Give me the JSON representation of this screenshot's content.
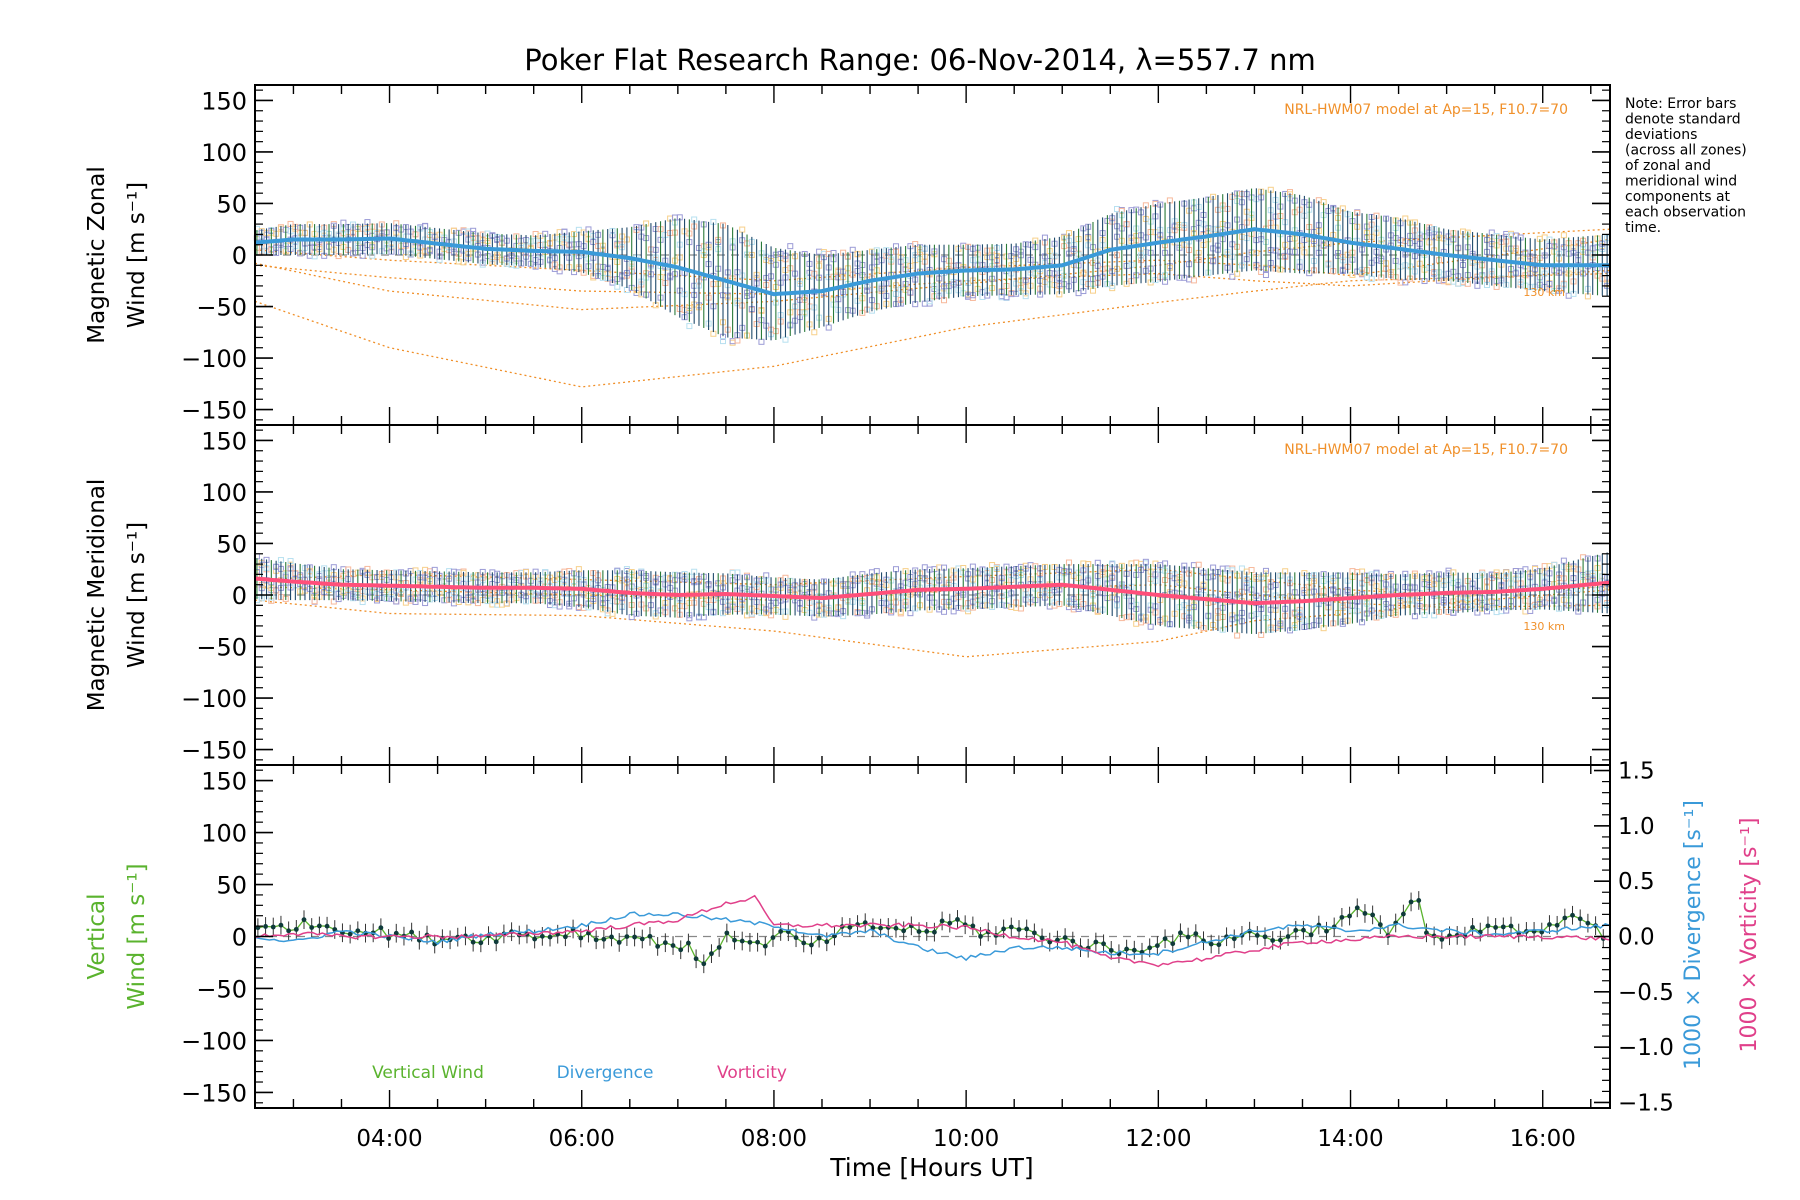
{
  "title": "Poker Flat Research Range: 06-Nov-2014, λ=557.7 nm",
  "note": [
    "Note: Error bars",
    "denote standard",
    "deviations",
    "(across all zones)",
    "of zonal and",
    "meridional wind",
    "components at",
    "each observation",
    "time."
  ],
  "colors": {
    "zonal_mean": "#3a9ad9",
    "meridional_mean": "#ff4f7a",
    "vertical": "#5ab32e",
    "divergence": "#3a9ad9",
    "vorticity": "#e0408a",
    "model": "#f0902a",
    "scatter": "#9b9bd6",
    "errorbar": "#1f4a6b"
  },
  "chart_data": [
    {
      "type": "line",
      "panel": "zonal",
      "ylabel_lines": [
        "Magnetic Zonal",
        "Wind [m s⁻¹]"
      ],
      "ylim": [
        -165,
        165
      ],
      "yticks": [
        150,
        100,
        50,
        0,
        -50,
        -100,
        -150
      ],
      "xlim": [
        2.6,
        16.7
      ],
      "model_label": "NRL-HWM07 model at Ap=15, F10.7=70",
      "model_alt_label": "130 km",
      "series": [
        {
          "role": "mean",
          "x": [
            2.6,
            3.0,
            3.5,
            4.0,
            4.5,
            5.0,
            5.5,
            6.0,
            6.5,
            7.0,
            7.5,
            8.0,
            8.5,
            9.0,
            9.5,
            10.0,
            10.5,
            11.0,
            11.5,
            12.0,
            12.5,
            13.0,
            13.5,
            14.0,
            14.5,
            15.0,
            15.5,
            16.0,
            16.7
          ],
          "y": [
            12,
            15,
            15,
            16,
            11,
            6,
            4,
            3,
            -3,
            -12,
            -25,
            -38,
            -35,
            -25,
            -18,
            -15,
            -14,
            -10,
            5,
            12,
            18,
            25,
            20,
            12,
            6,
            0,
            -5,
            -10,
            -10
          ],
          "error": [
            12,
            15,
            15,
            15,
            15,
            15,
            15,
            20,
            30,
            48,
            55,
            45,
            35,
            30,
            28,
            25,
            25,
            28,
            35,
            38,
            38,
            40,
            38,
            30,
            30,
            25,
            25,
            25,
            30
          ]
        }
      ],
      "models": [
        {
          "x": [
            2.6,
            4.0,
            6.0,
            8.0,
            10.0,
            12.0,
            13.0,
            14.0,
            16.7
          ],
          "y": [
            -45,
            -90,
            -128,
            -108,
            -70,
            -46,
            -35,
            -25,
            -18
          ]
        },
        {
          "x": [
            2.6,
            4.0,
            6.0,
            8.0,
            10.0,
            12.0,
            13.0,
            14.0,
            16.7
          ],
          "y": [
            -8,
            -35,
            -53,
            -45,
            -28,
            -10,
            3,
            12,
            25
          ]
        },
        {
          "x": [
            2.6,
            4.0,
            6.0,
            8.0,
            10.0,
            12.0,
            13.0,
            14.0,
            16.7
          ],
          "y": [
            5,
            -5,
            -15,
            -25,
            -12,
            -5,
            -10,
            -20,
            15
          ]
        },
        {
          "x": [
            2.6,
            4.0,
            6.0,
            8.0,
            10.0,
            12.0,
            13.0,
            14.0,
            16.7
          ],
          "y": [
            -10,
            -22,
            -35,
            -38,
            -25,
            -18,
            -25,
            -30,
            -15
          ]
        }
      ]
    },
    {
      "type": "line",
      "panel": "meridional",
      "ylabel_lines": [
        "Magnetic Meridional",
        "Wind [m s⁻¹]"
      ],
      "ylim": [
        -165,
        165
      ],
      "yticks": [
        150,
        100,
        50,
        0,
        -50,
        -100,
        -150
      ],
      "xlim": [
        2.6,
        16.7
      ],
      "model_label": "NRL-HWM07 model at Ap=15, F10.7=70",
      "model_alt_label": "130 km",
      "series": [
        {
          "role": "mean",
          "x": [
            2.6,
            3.0,
            3.5,
            4.0,
            4.5,
            5.0,
            5.5,
            6.0,
            6.5,
            7.0,
            7.5,
            8.0,
            8.5,
            9.0,
            9.5,
            10.0,
            10.5,
            11.0,
            11.5,
            12.0,
            12.5,
            13.0,
            13.5,
            14.0,
            14.5,
            15.0,
            15.5,
            16.0,
            16.7
          ],
          "y": [
            16,
            13,
            10,
            9,
            8,
            7,
            7,
            6,
            2,
            0,
            1,
            -1,
            -3,
            1,
            5,
            6,
            8,
            10,
            5,
            0,
            -4,
            -8,
            -6,
            -3,
            0,
            2,
            3,
            6,
            12
          ],
          "error": [
            20,
            18,
            15,
            15,
            15,
            15,
            15,
            18,
            22,
            22,
            20,
            18,
            18,
            20,
            20,
            20,
            20,
            20,
            25,
            30,
            30,
            30,
            28,
            25,
            20,
            20,
            18,
            20,
            30
          ]
        }
      ],
      "models": [
        {
          "x": [
            2.6,
            4.0,
            6.0,
            8.0,
            10.0,
            12.0,
            13.0,
            14.0,
            15.0,
            16.7
          ],
          "y": [
            -5,
            -18,
            -20,
            -35,
            -60,
            -45,
            -25,
            -18,
            -8,
            5
          ]
        },
        {
          "x": [
            2.6,
            4.0,
            6.0,
            8.0,
            10.0,
            12.0,
            13.0,
            14.0,
            15.0,
            16.7
          ],
          "y": [
            15,
            20,
            15,
            10,
            18,
            25,
            15,
            5,
            0,
            8
          ]
        },
        {
          "x": [
            2.6,
            4.0,
            6.0,
            8.0,
            10.0,
            12.0,
            13.0,
            14.0,
            15.0,
            16.7
          ],
          "y": [
            8,
            5,
            0,
            -5,
            5,
            10,
            0,
            -8,
            -12,
            -10
          ]
        }
      ]
    },
    {
      "type": "line",
      "panel": "vertical",
      "ylabel_lines": [
        "Vertical",
        "Wind [m s⁻¹]"
      ],
      "ylim": [
        -165,
        165
      ],
      "yticks": [
        150,
        100,
        50,
        0,
        -50,
        -100,
        -150
      ],
      "y2label_divergence": "1000 × Divergence [s⁻¹]",
      "y2label_vorticity": "1000 × Vorticity [s⁻¹]",
      "y2lim": [
        -1.55,
        1.55
      ],
      "y2ticks": [
        1.5,
        1.0,
        0.5,
        0.0,
        -0.5,
        -1.0,
        -1.5
      ],
      "y2ticklabels": [
        "1.5",
        "1.0",
        "0.5",
        "0.0",
        "−0.5",
        "−1.0",
        "−1.5"
      ],
      "xlim": [
        2.6,
        16.7
      ],
      "xticks": [
        4,
        6,
        8,
        10,
        12,
        14,
        16
      ],
      "xticklabels": [
        "04:00",
        "06:00",
        "08:00",
        "10:00",
        "12:00",
        "14:00",
        "16:00"
      ],
      "xlabel": "Time [Hours UT]",
      "legend": [
        "Vertical Wind",
        "Divergence",
        "Vorticity"
      ],
      "series": [
        {
          "name": "Vertical Wind",
          "x": [
            2.6,
            2.9,
            3.2,
            3.5,
            3.8,
            4.1,
            4.4,
            4.7,
            5.0,
            5.3,
            5.6,
            5.9,
            6.2,
            6.5,
            6.8,
            7.1,
            7.3,
            7.5,
            7.8,
            8.1,
            8.4,
            8.7,
            9.0,
            9.3,
            9.6,
            9.9,
            10.2,
            10.5,
            10.8,
            11.1,
            11.4,
            11.7,
            12.0,
            12.3,
            12.6,
            12.9,
            13.2,
            13.5,
            13.8,
            14.1,
            14.4,
            14.7,
            14.8,
            15.0,
            15.3,
            15.6,
            15.9,
            16.2,
            16.5,
            16.7
          ],
          "y": [
            5,
            10,
            12,
            8,
            5,
            2,
            -3,
            0,
            -2,
            3,
            0,
            5,
            -2,
            0,
            -5,
            -10,
            -30,
            5,
            -10,
            3,
            -10,
            5,
            10,
            8,
            5,
            15,
            2,
            8,
            0,
            -5,
            -10,
            -15,
            -5,
            0,
            -5,
            3,
            -2,
            5,
            10,
            25,
            5,
            40,
            0,
            -5,
            5,
            10,
            0,
            15,
            18,
            -10
          ]
        },
        {
          "name": "Divergence",
          "axis": "y2",
          "x": [
            2.6,
            3.0,
            3.5,
            4.0,
            4.5,
            5.0,
            5.5,
            6.0,
            6.5,
            7.0,
            7.5,
            8.0,
            8.5,
            9.0,
            9.5,
            10.0,
            10.5,
            11.0,
            11.5,
            12.0,
            12.5,
            13.0,
            13.5,
            14.0,
            14.5,
            15.0,
            15.5,
            16.0,
            16.7
          ],
          "y": [
            0.0,
            -0.05,
            0.05,
            0.0,
            -0.05,
            0.02,
            0.05,
            0.1,
            0.2,
            0.2,
            0.15,
            0.1,
            0.0,
            0.05,
            -0.1,
            -0.2,
            -0.1,
            -0.1,
            -0.15,
            -0.15,
            -0.05,
            0.05,
            0.1,
            0.05,
            0.1,
            0.05,
            0.02,
            0.05,
            0.1
          ]
        },
        {
          "name": "Vorticity",
          "axis": "y2",
          "x": [
            2.6,
            3.0,
            3.5,
            4.0,
            4.5,
            5.0,
            5.5,
            6.0,
            6.5,
            7.0,
            7.5,
            7.8,
            8.0,
            8.5,
            9.0,
            9.5,
            10.0,
            10.5,
            11.0,
            11.5,
            12.0,
            12.5,
            13.0,
            13.5,
            14.0,
            14.5,
            15.0,
            15.5,
            16.0,
            16.7
          ],
          "y": [
            0.0,
            0.03,
            0.0,
            0.0,
            0.0,
            0.0,
            0.03,
            0.05,
            0.1,
            0.15,
            0.3,
            0.35,
            0.1,
            0.1,
            0.1,
            0.1,
            0.08,
            0.0,
            -0.05,
            -0.2,
            -0.25,
            -0.2,
            -0.12,
            -0.05,
            -0.03,
            0.0,
            0.0,
            0.0,
            0.0,
            -0.02
          ]
        }
      ]
    }
  ]
}
